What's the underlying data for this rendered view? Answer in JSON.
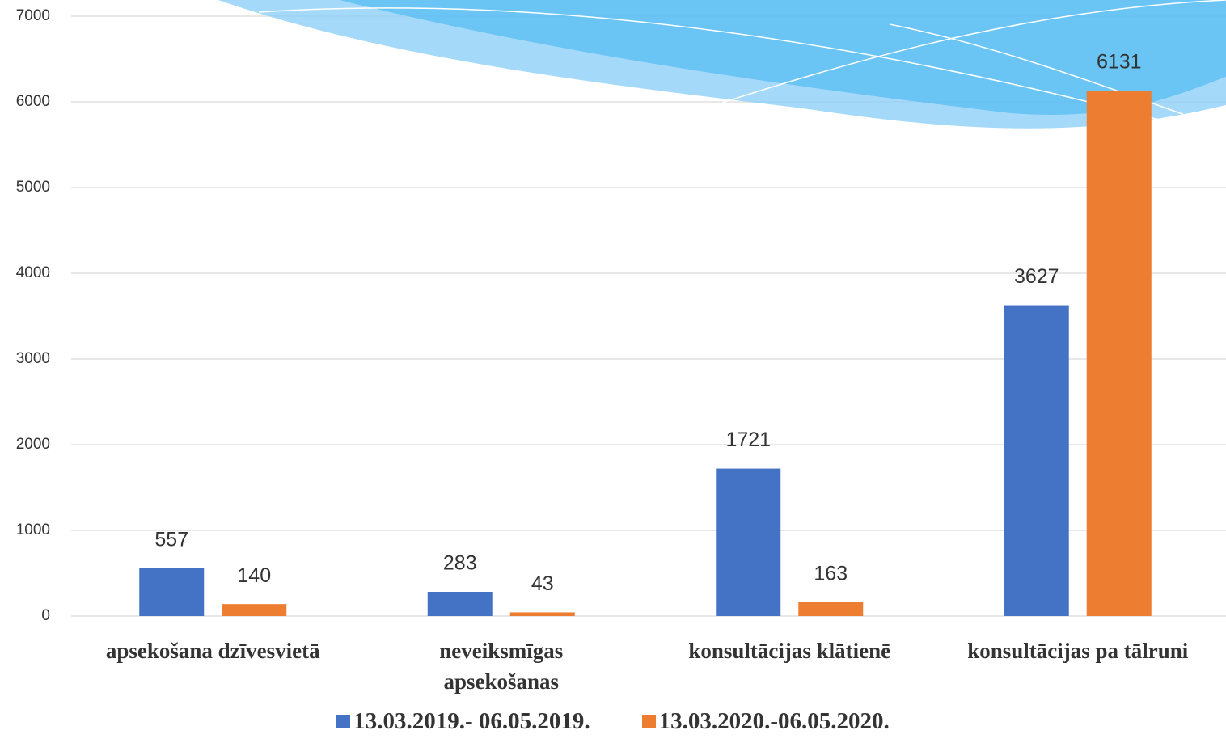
{
  "chart_data": {
    "type": "bar",
    "categories": [
      "apsekošana dzīvesvietā",
      "neveiksmīgas\napsekošanas",
      "konsultācijas klātienē",
      "konsultācijas pa tālruni"
    ],
    "series": [
      {
        "name": "13.03.2019.- 06.05.2019.",
        "color": "#4472c4",
        "values": [
          557,
          283,
          1721,
          3627
        ]
      },
      {
        "name": "13.03.2020.-06.05.2020.",
        "color": "#ed7d31",
        "values": [
          140,
          43,
          163,
          6131
        ]
      }
    ],
    "ylim": [
      0,
      7000
    ],
    "yticks": [
      0,
      1000,
      2000,
      3000,
      4000,
      5000,
      6000,
      7000
    ],
    "grid": true,
    "legend": "bottom"
  }
}
